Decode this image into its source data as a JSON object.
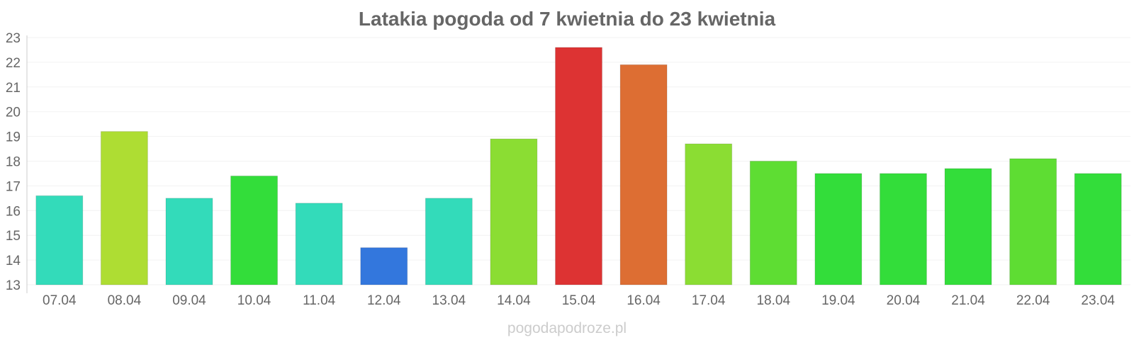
{
  "chart_data": {
    "type": "bar",
    "title": "Latakia pogoda od 7 kwietnia do 23 kwietnia",
    "xlabel": "",
    "ylabel": "",
    "categories": [
      "07.04",
      "08.04",
      "09.04",
      "10.04",
      "11.04",
      "12.04",
      "13.04",
      "14.04",
      "15.04",
      "16.04",
      "17.04",
      "18.04",
      "19.04",
      "20.04",
      "21.04",
      "22.04",
      "23.04"
    ],
    "values": [
      16.6,
      19.2,
      16.5,
      17.4,
      16.3,
      14.5,
      16.5,
      18.9,
      22.6,
      21.9,
      18.7,
      18.0,
      17.5,
      17.5,
      17.7,
      18.1,
      17.5
    ],
    "colors": [
      "#33dbba",
      "#aedd33",
      "#33dbba",
      "#33dd3a",
      "#33dbba",
      "#3377dd",
      "#33dbba",
      "#8bdd33",
      "#dd3333",
      "#dd6e33",
      "#8bdd33",
      "#5edd33",
      "#33dd3a",
      "#33dd3a",
      "#33dd3a",
      "#5edd33",
      "#33dd3a"
    ],
    "ylim": [
      13,
      23
    ],
    "yticks": [
      13,
      14,
      15,
      16,
      17,
      18,
      19,
      20,
      21,
      22,
      23
    ],
    "grid": true,
    "legend": "none"
  },
  "watermark": "pogodapodroze.pl"
}
